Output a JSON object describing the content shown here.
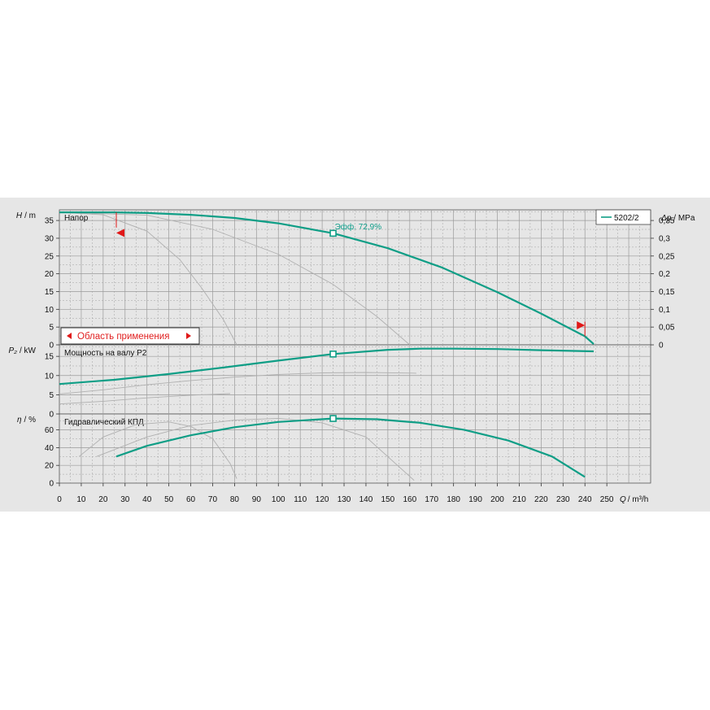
{
  "colors": {
    "curve": "#0f9e86",
    "grid": "#9a9a9a",
    "ghost": "#b0b0b0",
    "panel": "#e6e6e6",
    "range_marker": "#e01818"
  },
  "chart_data": [
    {
      "type": "line",
      "title": "Напор",
      "ylabel_symbol": "H",
      "ylabel_unit": "/ m",
      "y2label_symbol": "Δp",
      "y2label_unit": "/ MPa",
      "ylim": [
        0,
        38
      ],
      "yticks": [
        0,
        5,
        10,
        15,
        20,
        25,
        30,
        35
      ],
      "y2ticks": [
        "0",
        "0,05",
        "0,1",
        "0,15",
        "0,2",
        "0,25",
        "0,3",
        "0,35"
      ],
      "legend": "5202/2",
      "legend_position": "top-right",
      "series": [
        {
          "name": "5202/2",
          "x": [
            0,
            25,
            40,
            60,
            80,
            100,
            125,
            150,
            175,
            200,
            220,
            240,
            244
          ],
          "y": [
            37.3,
            37.3,
            37.1,
            36.6,
            35.7,
            34.2,
            31.4,
            27.2,
            21.7,
            14.8,
            8.8,
            2.4,
            0.2
          ]
        }
      ],
      "ghost_curves": [
        {
          "x": [
            0,
            20,
            40,
            55,
            65,
            75,
            81
          ],
          "y": [
            37.3,
            36.6,
            32,
            24,
            16,
            7,
            0
          ]
        },
        {
          "x": [
            0,
            40,
            70,
            100,
            125,
            145,
            160
          ],
          "y": [
            37.3,
            36.5,
            32.5,
            25.5,
            17,
            8,
            0
          ]
        }
      ],
      "operating_point": {
        "x": 125,
        "y": 31.4,
        "label": "Эфф.  72,9%"
      },
      "application_range": {
        "label": "Область применения",
        "x_min": 26,
        "x_max": 240
      }
    },
    {
      "type": "line",
      "title": "Мощность на валу P2",
      "ylabel_symbol": "P₂",
      "ylabel_unit": "/ kW",
      "ylim": [
        0,
        18
      ],
      "yticks": [
        0,
        5,
        10,
        15
      ],
      "series": [
        {
          "name": "5202/2",
          "x": [
            0,
            25,
            50,
            75,
            100,
            125,
            150,
            165,
            180,
            200,
            220,
            244
          ],
          "y": [
            7.8,
            8.9,
            10.4,
            12.1,
            13.9,
            15.6,
            16.7,
            17.0,
            17.0,
            16.9,
            16.6,
            16.3
          ]
        }
      ],
      "ghost_curves": [
        {
          "x": [
            0,
            20,
            40,
            60,
            80,
            100,
            120,
            140,
            163
          ],
          "y": [
            5.2,
            6.3,
            7.6,
            8.7,
            9.6,
            10.3,
            10.7,
            10.8,
            10.6
          ]
        },
        {
          "x": [
            0,
            20,
            40,
            60,
            78
          ],
          "y": [
            2.6,
            3.3,
            4.2,
            4.9,
            5.3
          ]
        }
      ],
      "operating_point": {
        "x": 125,
        "y": 15.6
      }
    },
    {
      "type": "line",
      "title": "Гидравлический КПД",
      "ylabel_symbol": "η",
      "ylabel_unit": "/ %",
      "ylim": [
        0,
        78
      ],
      "yticks": [
        0,
        20,
        40,
        60
      ],
      "series": [
        {
          "name": "5202/2",
          "x": [
            26,
            40,
            60,
            80,
            100,
            125,
            145,
            165,
            185,
            205,
            225,
            240
          ],
          "y": [
            30,
            42,
            54,
            63,
            69,
            72.9,
            72,
            68,
            60,
            48,
            30,
            7
          ]
        }
      ],
      "ghost_curves": [
        {
          "x": [
            9,
            20,
            35,
            50,
            60,
            70,
            78,
            81
          ],
          "y": [
            30,
            52,
            66,
            69,
            64,
            50,
            22,
            5
          ]
        },
        {
          "x": [
            17,
            40,
            60,
            80,
            100,
            120,
            140,
            162
          ],
          "y": [
            30,
            52,
            65,
            71,
            73,
            68,
            52,
            3
          ]
        }
      ],
      "operating_point": {
        "x": 125,
        "y": 72.9
      }
    }
  ],
  "x_axis": {
    "symbol": "Q",
    "unit": "/ m³/h",
    "ticks": [
      0,
      10,
      20,
      30,
      40,
      50,
      60,
      70,
      80,
      90,
      100,
      110,
      120,
      130,
      140,
      150,
      160,
      170,
      180,
      190,
      200,
      210,
      220,
      230,
      240,
      250
    ],
    "range": [
      0,
      270
    ]
  }
}
